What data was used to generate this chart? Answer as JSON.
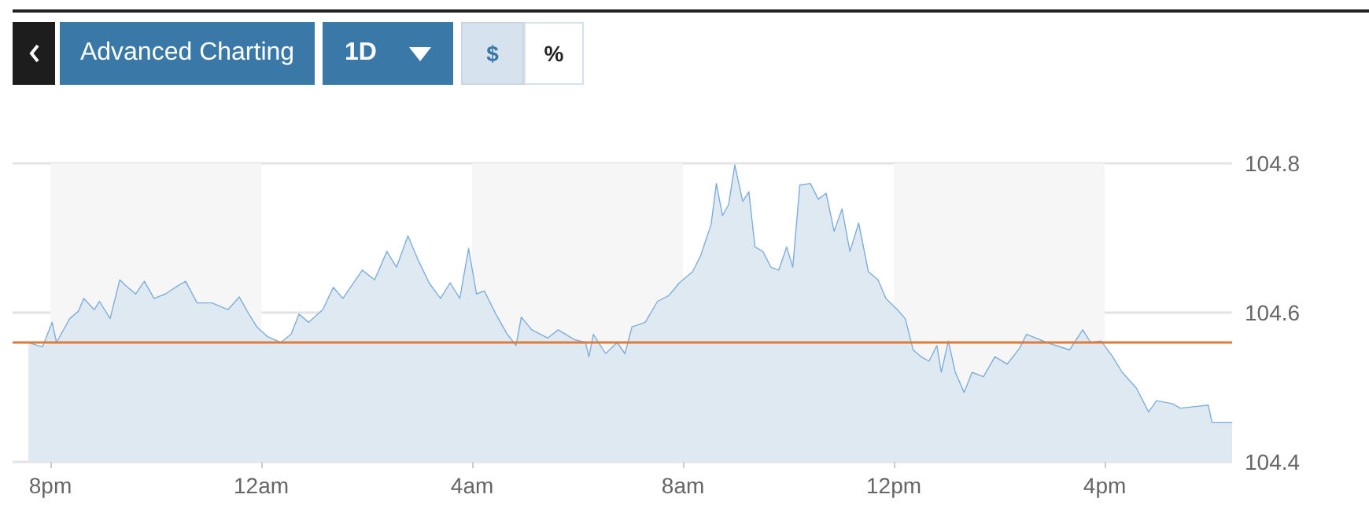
{
  "chart_data": {
    "type": "area",
    "annotations": [
      "Advanced Charting",
      "1D",
      "$",
      "%"
    ],
    "series": [
      {
        "color": "#7eaedb",
        "x": [
          "--01-01T19:35",
          "--01-01T19:51",
          "--01-01T20:02",
          "--01-01T20:07",
          "--01-01T20:22",
          "--01-01T20:32",
          "--01-01T20:38",
          "--01-01T20:50",
          "--01-01T20:56",
          "--01-01T21:08",
          "--01-01T21:19",
          "--01-01T21:26",
          "--01-01T21:37",
          "--01-01T21:47",
          "--01-01T21:58",
          "--01-01T22:11",
          "--01-01T22:25",
          "--01-01T22:34",
          "--01-01T22:47",
          "--01-01T23:04",
          "--01-01T23:22",
          "--01-01T23:35",
          "--01-01T23:46",
          "--01-01T23:55",
          "--01-02T00:07",
          "--01-02T00:22",
          "--01-02T00:34",
          "--01-02T00:43",
          "--01-02T00:54",
          "--01-02T01:10",
          "--01-02T01:22",
          "--01-02T01:33",
          "--01-02T01:55",
          "--01-02T02:09",
          "--01-02T02:23",
          "--01-02T02:34",
          "--01-02T02:47",
          "--01-02T02:58",
          "--01-02T03:11",
          "--01-02T03:24",
          "--01-02T03:35",
          "--01-02T03:46",
          "--01-02T03:56",
          "--01-02T04:05",
          "--01-02T04:14",
          "--01-02T04:27",
          "--01-02T04:40",
          "--01-02T04:50",
          "--01-02T04:56",
          "--01-02T05:08",
          "--01-02T05:26",
          "--01-02T05:38",
          "--01-02T05:56",
          "--01-02T06:09",
          "--01-02T06:13",
          "--01-02T06:18",
          "--01-02T06:32",
          "--01-02T06:45",
          "--01-02T06:54",
          "--01-02T07:02",
          "--01-02T07:17",
          "--01-02T07:31",
          "--01-02T07:44",
          "--01-02T07:56",
          "--01-02T08:11",
          "--01-02T08:20",
          "--01-02T08:32",
          "--01-02T08:38",
          "--01-02T08:45",
          "--01-02T08:52",
          "--01-02T08:59",
          "--01-02T09:08",
          "--01-02T09:15",
          "--01-02T09:22",
          "--01-02T09:31",
          "--01-02T09:40",
          "--01-02T09:49",
          "--01-02T09:58",
          "--01-02T10:05",
          "--01-02T10:13",
          "--01-02T10:25",
          "--01-02T10:34",
          "--01-02T10:43",
          "--01-02T10:52",
          "--01-02T11:01",
          "--01-02T11:10",
          "--01-02T11:20",
          "--01-02T11:31",
          "--01-02T11:42",
          "--01-02T11:51",
          "--01-02T12:04",
          "--01-02T12:13",
          "--01-02T12:22",
          "--01-02T12:31",
          "--01-02T12:40",
          "--01-02T12:49",
          "--01-02T12:54",
          "--01-02T13:02",
          "--01-02T13:10",
          "--01-02T13:20",
          "--01-02T13:29",
          "--01-02T13:42",
          "--01-02T13:55",
          "--01-02T14:09",
          "--01-02T14:23",
          "--01-02T14:31",
          "--01-02T14:54",
          "--01-02T15:20",
          "--01-02T15:35",
          "--01-02T15:44",
          "--01-02T15:56",
          "--01-02T16:09",
          "--01-02T16:20",
          "--01-02T16:36",
          "--01-02T16:50",
          "--01-02T16:59",
          "--01-02T17:17",
          "--01-02T17:26",
          "--01-02T17:58",
          "--01-02T18:02",
          "--01-02T18:25"
        ],
        "values": [
          104.56,
          104.554,
          104.587,
          104.56,
          104.592,
          104.602,
          104.619,
          104.604,
          104.615,
          104.592,
          104.644,
          104.636,
          104.625,
          104.642,
          104.619,
          104.625,
          104.636,
          104.642,
          104.613,
          104.613,
          104.604,
          104.621,
          104.598,
          104.581,
          104.568,
          104.56,
          104.571,
          104.598,
          104.587,
          104.604,
          104.634,
          104.619,
          104.657,
          104.644,
          104.682,
          104.661,
          104.703,
          104.672,
          104.64,
          104.619,
          104.64,
          104.619,
          104.686,
          104.625,
          104.629,
          104.598,
          104.571,
          104.556,
          104.594,
          104.577,
          104.566,
          104.577,
          104.564,
          104.56,
          104.541,
          104.571,
          104.545,
          104.56,
          104.545,
          104.581,
          104.587,
          104.615,
          104.623,
          104.64,
          104.655,
          104.676,
          104.718,
          104.773,
          104.73,
          104.745,
          104.798,
          104.749,
          104.762,
          104.688,
          104.682,
          104.661,
          104.657,
          104.688,
          104.661,
          104.771,
          104.773,
          104.752,
          104.76,
          104.709,
          104.739,
          104.682,
          104.72,
          104.655,
          104.644,
          104.619,
          104.604,
          104.592,
          104.55,
          104.541,
          104.535,
          104.556,
          104.52,
          104.562,
          104.52,
          104.493,
          104.52,
          104.514,
          104.541,
          104.531,
          104.552,
          104.571,
          104.56,
          104.55,
          104.577,
          104.56,
          104.562,
          104.541,
          104.52,
          104.499,
          104.467,
          104.482,
          104.478,
          104.472,
          104.476,
          104.453,
          104.453
        ]
      }
    ],
    "xlim": [
      "--01-01T19:17",
      "--01-02T18:25"
    ],
    "xticks": [
      {
        "value": "--01-01T20:00",
        "label": "8pm"
      },
      {
        "value": "--01-02T00:00",
        "label": "12am"
      },
      {
        "value": "--01-02T04:00",
        "label": "4am"
      },
      {
        "value": "--01-02T08:00",
        "label": "8am"
      },
      {
        "value": "--01-02T12:00",
        "label": "12pm"
      },
      {
        "value": "--01-02T16:00",
        "label": "4pm"
      }
    ],
    "ylim": [
      104.4,
      104.8
    ],
    "yticks": [
      104.4,
      104.6,
      104.8
    ],
    "grid": "y",
    "ref_lines": [
      {
        "axis": "y",
        "value": 104.56,
        "color": "#e07b39"
      }
    ],
    "bands": [
      {
        "axis": "x",
        "from": "--01-01T20:00",
        "to": "--01-02T00:00",
        "color": "#f6f6f6"
      },
      {
        "axis": "x",
        "from": "--01-02T04:00",
        "to": "--01-02T08:00",
        "color": "#f6f6f6"
      },
      {
        "axis": "x",
        "from": "--01-02T12:00",
        "to": "--01-02T16:00",
        "color": "#f6f6f6"
      }
    ]
  }
}
